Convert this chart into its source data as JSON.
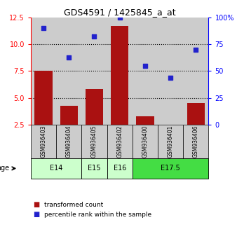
{
  "title": "GDS4591 / 1425845_a_at",
  "samples": [
    "GSM936403",
    "GSM936404",
    "GSM936405",
    "GSM936402",
    "GSM936400",
    "GSM936401",
    "GSM936406"
  ],
  "transformed_count": [
    7.5,
    4.3,
    5.85,
    11.7,
    3.3,
    2.3,
    4.5
  ],
  "percentile_rank": [
    90,
    63,
    82,
    100,
    55,
    44,
    70
  ],
  "age_groups": [
    {
      "label": "E14",
      "samples": [
        0,
        1
      ],
      "color": "#ccffcc"
    },
    {
      "label": "E15",
      "samples": [
        2
      ],
      "color": "#ccffcc"
    },
    {
      "label": "E16",
      "samples": [
        3
      ],
      "color": "#ccffcc"
    },
    {
      "label": "E17.5",
      "samples": [
        4,
        5,
        6
      ],
      "color": "#44dd44"
    }
  ],
  "bar_color": "#aa1111",
  "dot_color": "#2222cc",
  "left_ylim": [
    2.5,
    12.5
  ],
  "left_yticks": [
    2.5,
    5.0,
    7.5,
    10.0,
    12.5
  ],
  "right_ylim": [
    0,
    100
  ],
  "right_yticks": [
    0,
    25,
    50,
    75,
    100
  ],
  "right_yticklabels": [
    "0",
    "25",
    "50",
    "75",
    "100%"
  ],
  "hline_values": [
    5.0,
    7.5,
    10.0
  ],
  "bg_color": "#cccccc",
  "legend_red_label": "transformed count",
  "legend_blue_label": "percentile rank within the sample",
  "age_label": "age"
}
